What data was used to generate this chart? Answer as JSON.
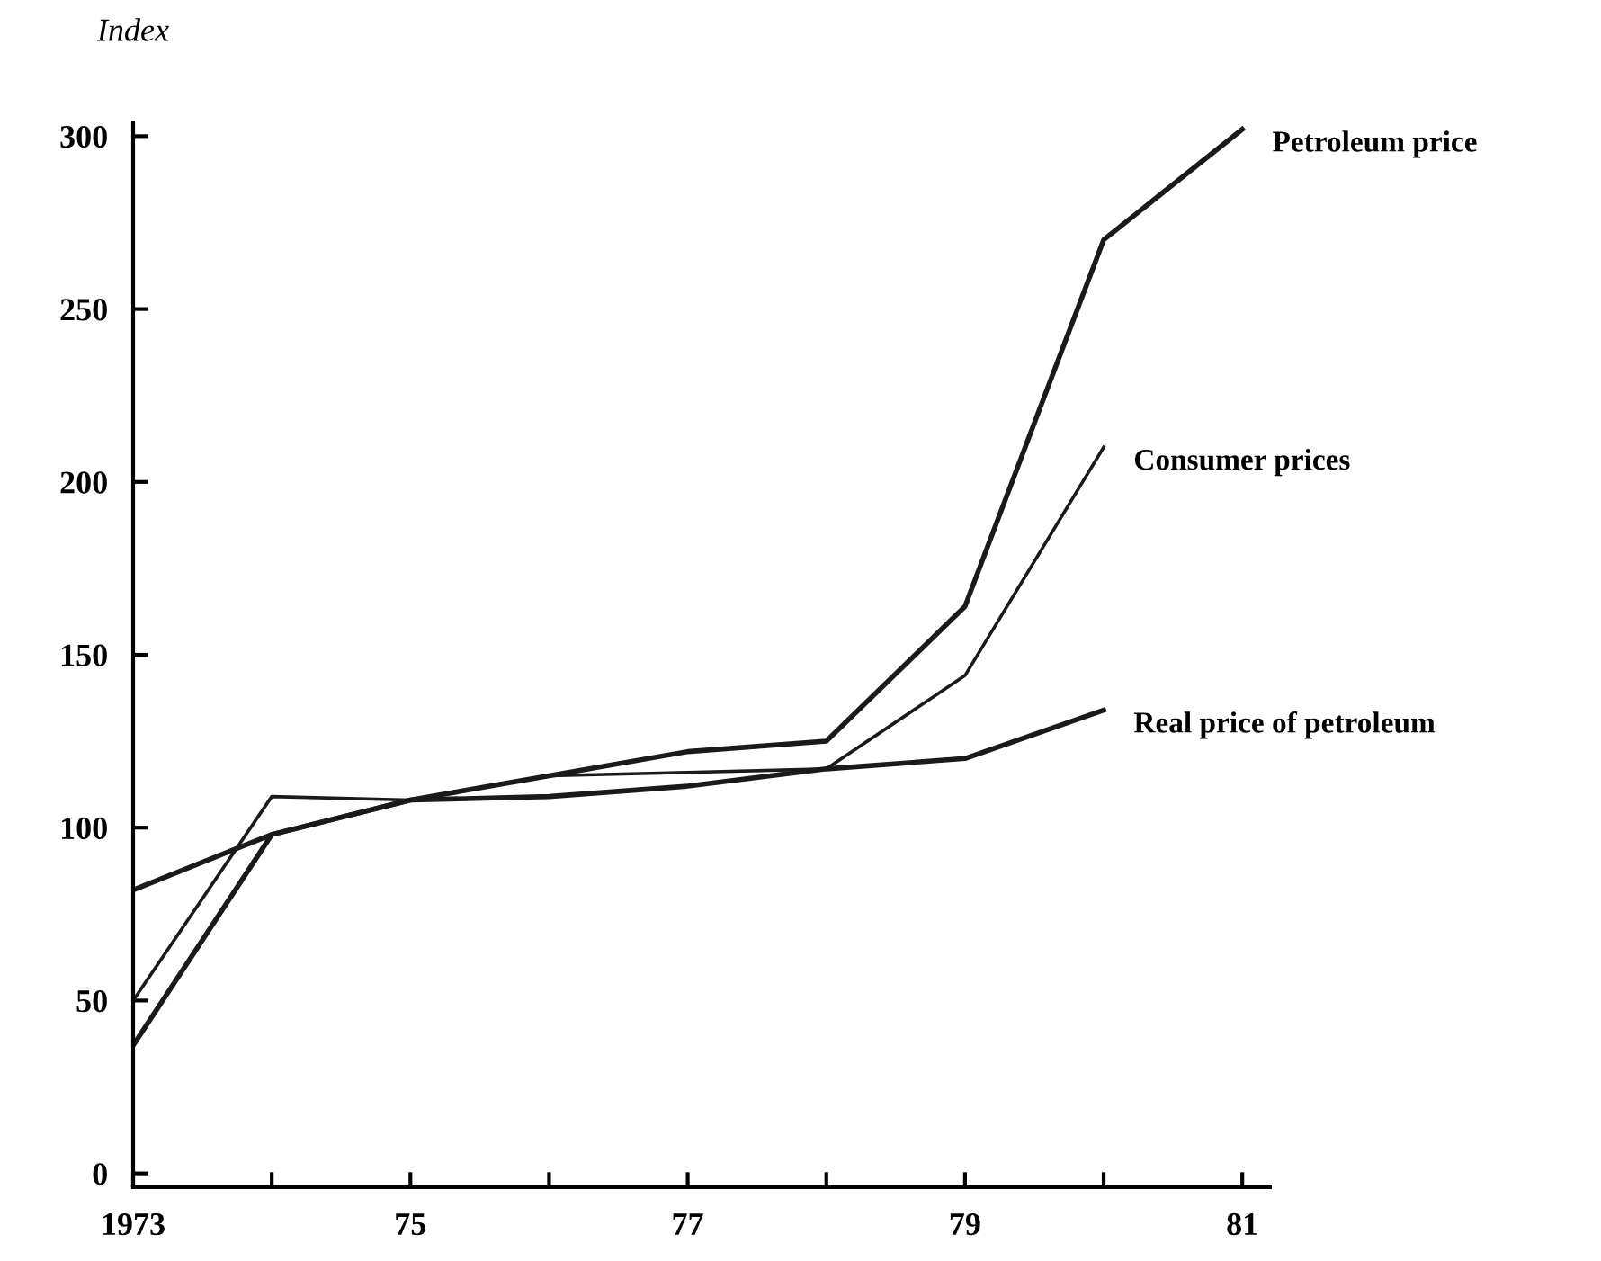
{
  "chart_data": {
    "type": "line",
    "ylabel": "Index",
    "x": [
      1973,
      1974,
      1975,
      1976,
      1977,
      1978,
      1979,
      1980,
      1981
    ],
    "series": [
      {
        "name": "Petroleum price",
        "color": "#1a1a1a",
        "values": [
          37,
          98,
          108,
          115,
          122,
          125,
          164,
          270,
          302
        ]
      },
      {
        "name": "Consumer prices",
        "color": "#1a1a1a",
        "values": [
          50,
          109,
          108,
          115,
          116,
          117,
          144,
          210,
          null
        ]
      },
      {
        "name": "Real price of petroleum",
        "color": "#1a1a1a",
        "values": [
          82,
          98,
          108,
          109,
          112,
          117,
          120,
          134,
          null
        ]
      }
    ],
    "xlim": [
      1973,
      1981.2
    ],
    "ylim": [
      -4,
      304
    ],
    "xticks": [
      1973,
      {
        "value": 1974,
        "label": null
      },
      {
        "value": 1975,
        "label": "75"
      },
      {
        "value": 1976,
        "label": null
      },
      {
        "value": 1977,
        "label": "77"
      },
      {
        "value": 1978,
        "label": null
      },
      {
        "value": 1979,
        "label": "79"
      },
      {
        "value": 1980,
        "label": null
      },
      {
        "value": 1981,
        "label": "81"
      }
    ],
    "yticks": [
      0,
      50,
      100,
      150,
      200,
      250,
      300
    ],
    "grid": false,
    "legend": false,
    "marker": "none",
    "line_style": "solid"
  }
}
